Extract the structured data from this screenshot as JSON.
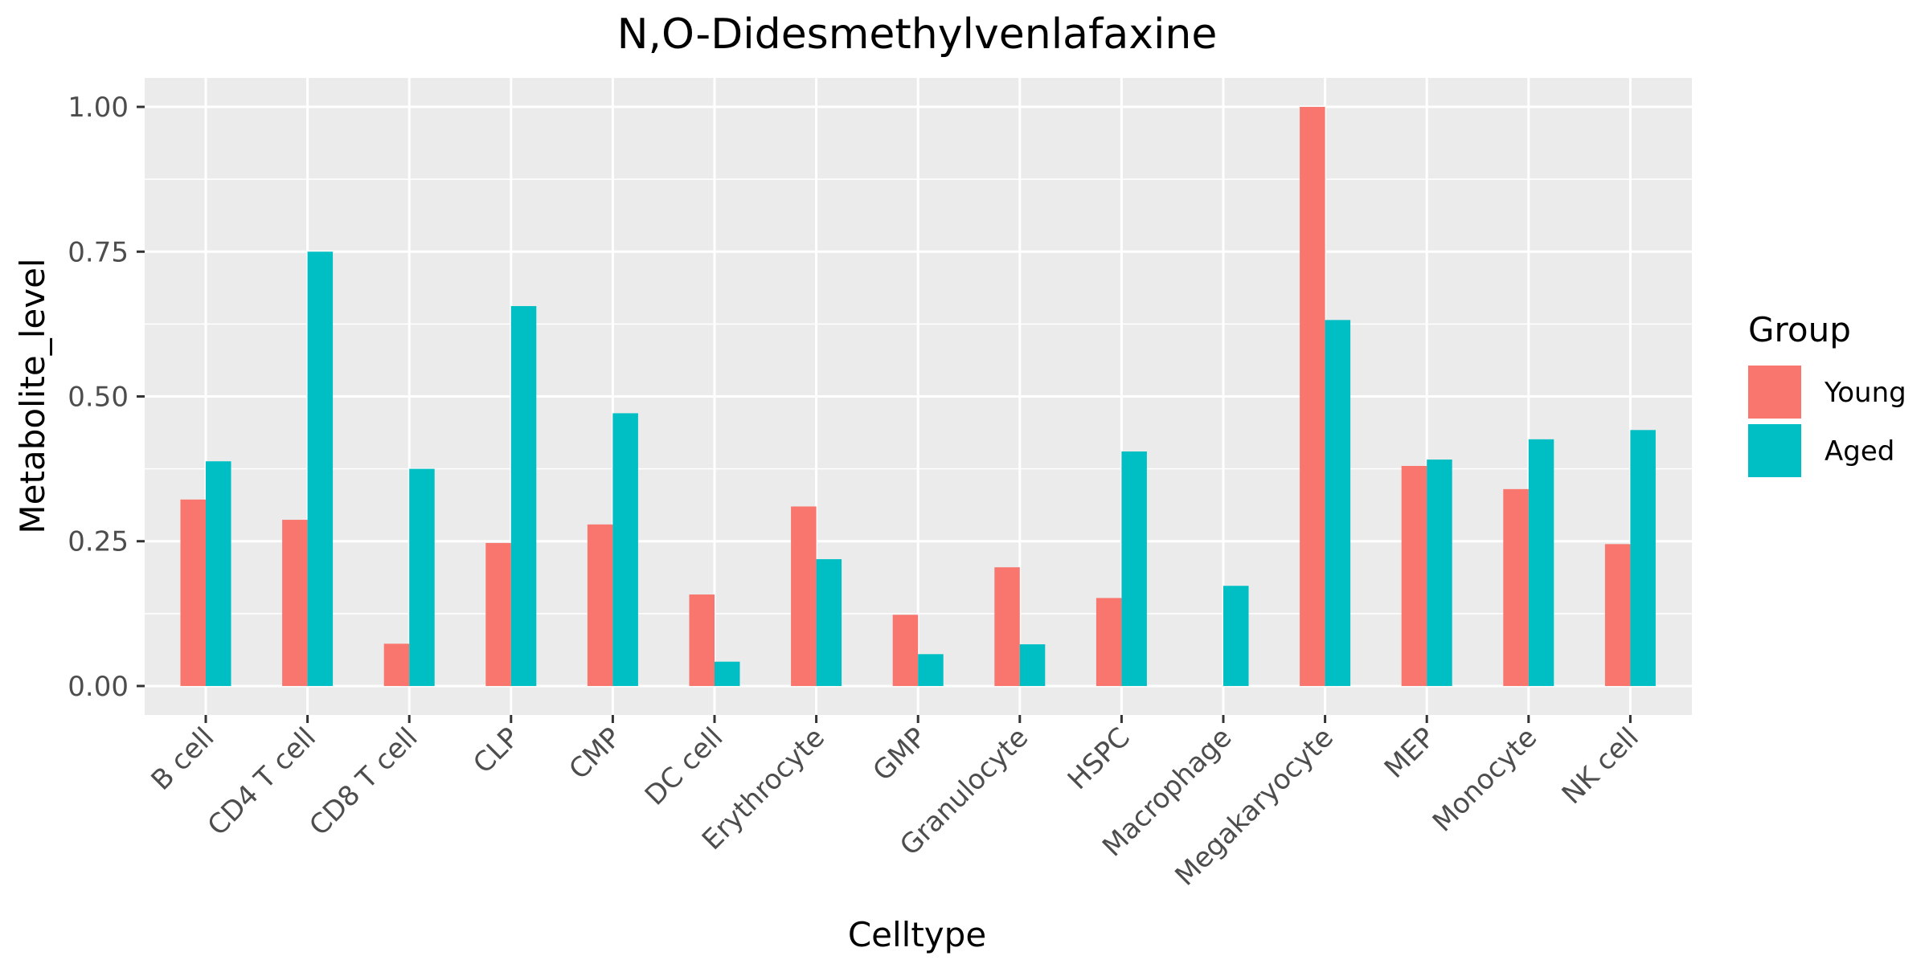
{
  "chart_data": {
    "type": "bar",
    "title": "N,O-Didesmethylvenlafaxine",
    "xlabel": "Celltype",
    "ylabel": "Metabolite_level",
    "ylim": [
      -0.05,
      1.05
    ],
    "yticks": [
      0.0,
      0.25,
      0.5,
      0.75,
      1.0
    ],
    "ytick_labels": [
      "0.00",
      "0.25",
      "0.50",
      "0.75",
      "1.00"
    ],
    "grid": true,
    "legend": {
      "title": "Group",
      "position": "right"
    },
    "categories": [
      "B cell",
      "CD4 T cell",
      "CD8 T cell",
      "CLP",
      "CMP",
      "DC cell",
      "Erythrocyte",
      "GMP",
      "Granulocyte",
      "HSPC",
      "Macrophage",
      "Megakaryocyte",
      "MEP",
      "Monocyte",
      "NK cell"
    ],
    "series": [
      {
        "name": "Young",
        "color": "#F8766D",
        "values": [
          0.322,
          0.287,
          0.073,
          0.247,
          0.279,
          0.158,
          0.31,
          0.123,
          0.205,
          0.152,
          0.0,
          1.0,
          0.38,
          0.34,
          0.245
        ]
      },
      {
        "name": "Aged",
        "color": "#00BFC4",
        "values": [
          0.388,
          0.75,
          0.375,
          0.656,
          0.471,
          0.042,
          0.219,
          0.055,
          0.072,
          0.405,
          0.173,
          0.632,
          0.391,
          0.426,
          0.442
        ]
      }
    ]
  },
  "colors": {
    "panel_background": "#EBEBEB",
    "grid_line": "#FFFFFF",
    "tick_color": "#333333"
  }
}
